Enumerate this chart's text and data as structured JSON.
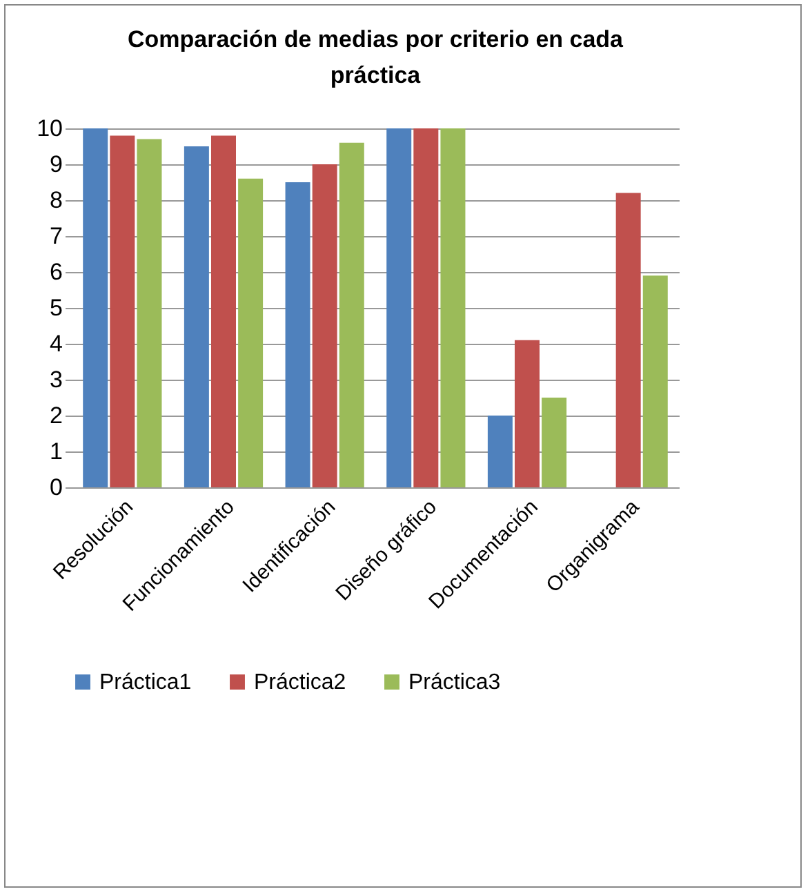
{
  "chart_data": {
    "type": "bar",
    "title": "Comparación de medias por criterio en cada práctica",
    "categories": [
      "Resolución",
      "Funcionamiento",
      "Identificación",
      "Diseño gráfico",
      "Documentación",
      "Organigrama"
    ],
    "series": [
      {
        "name": "Práctica1",
        "color": "#4f81bd",
        "values": [
          10,
          9.5,
          8.5,
          10,
          2,
          null
        ]
      },
      {
        "name": "Práctica2",
        "color": "#c0504d",
        "values": [
          9.8,
          9.8,
          9,
          10,
          4.1,
          8.2
        ]
      },
      {
        "name": "Práctica3",
        "color": "#9bbb59",
        "values": [
          9.7,
          8.6,
          9.6,
          10,
          2.5,
          5.9
        ]
      }
    ],
    "ylim": [
      0,
      10
    ],
    "yticks": [
      0,
      1,
      2,
      3,
      4,
      5,
      6,
      7,
      8,
      9,
      10
    ],
    "grid": "y",
    "legend": "bottom"
  }
}
